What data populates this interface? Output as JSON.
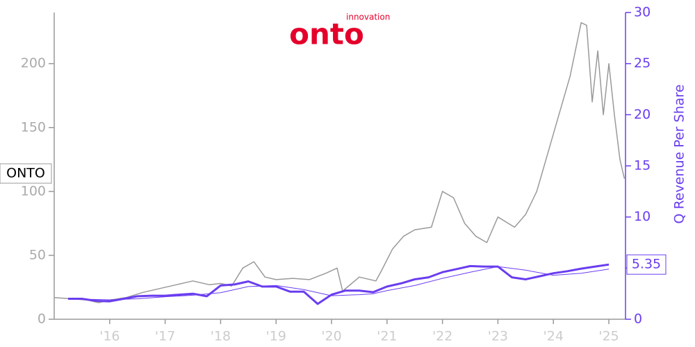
{
  "logo": {
    "name": "onto",
    "tagline": "innovation"
  },
  "chart_data": {
    "type": "line",
    "y2label": "Q Revenue Per Share",
    "xlim": [
      2015.0,
      2025.3
    ],
    "xticks": [
      {
        "value": 2016,
        "label": "'16"
      },
      {
        "value": 2017,
        "label": "'17"
      },
      {
        "value": 2018,
        "label": "'18"
      },
      {
        "value": 2019,
        "label": "'19"
      },
      {
        "value": 2020,
        "label": "'20"
      },
      {
        "value": 2021,
        "label": "'21"
      },
      {
        "value": 2022,
        "label": "'22"
      },
      {
        "value": 2023,
        "label": "'23"
      },
      {
        "value": 2024,
        "label": "'24"
      },
      {
        "value": 2025,
        "label": "'25"
      }
    ],
    "ylim": [
      0,
      240
    ],
    "yticks": [
      0,
      50,
      100,
      150,
      200
    ],
    "y2lim": [
      0,
      30
    ],
    "y2ticks": [
      0,
      5,
      10,
      15,
      20,
      25,
      30
    ],
    "series": [
      {
        "name": "ONTO",
        "color": "#999999",
        "line_width": 1.5,
        "x": [
          2015.0,
          2015.3,
          2015.6,
          2015.8,
          2016.0,
          2016.3,
          2016.6,
          2016.9,
          2017.2,
          2017.5,
          2017.8,
          2018.0,
          2018.2,
          2018.4,
          2018.6,
          2018.8,
          2019.0,
          2019.3,
          2019.6,
          2019.9,
          2020.1,
          2020.2,
          2020.5,
          2020.8,
          2020.9,
          2021.1,
          2021.3,
          2021.5,
          2021.8,
          2022.0,
          2022.2,
          2022.4,
          2022.6,
          2022.8,
          2023.0,
          2023.3,
          2023.5,
          2023.7,
          2023.9,
          2024.1,
          2024.3,
          2024.5,
          2024.6,
          2024.7,
          2024.8,
          2024.9,
          2025.0,
          2025.1,
          2025.2,
          2025.28
        ],
        "values": [
          17,
          16,
          15,
          13,
          15,
          17,
          21,
          24,
          27,
          30,
          27,
          28,
          26,
          40,
          45,
          33,
          31,
          32,
          31,
          36,
          40,
          22,
          33,
          30,
          38,
          55,
          65,
          70,
          72,
          100,
          95,
          75,
          65,
          60,
          80,
          72,
          82,
          100,
          130,
          160,
          190,
          232,
          230,
          170,
          210,
          160,
          200,
          160,
          125,
          110
        ]
      },
      {
        "color": "#6a3df0",
        "axis": "y2",
        "line_width": 3,
        "x": [
          2015.25,
          2015.5,
          2015.75,
          2016.0,
          2016.25,
          2016.5,
          2016.75,
          2017.0,
          2017.25,
          2017.5,
          2017.75,
          2018.0,
          2018.25,
          2018.5,
          2018.75,
          2019.0,
          2019.25,
          2019.5,
          2019.75,
          2020.0,
          2020.25,
          2020.5,
          2020.75,
          2021.0,
          2021.25,
          2021.5,
          2021.75,
          2022.0,
          2022.25,
          2022.5,
          2022.75,
          2023.0,
          2023.25,
          2023.5,
          2023.75,
          2024.0,
          2024.25,
          2024.5,
          2024.75,
          2025.0
        ],
        "values": [
          2.0,
          2.0,
          1.8,
          1.75,
          2.0,
          2.25,
          2.3,
          2.3,
          2.4,
          2.5,
          2.25,
          3.3,
          3.4,
          3.7,
          3.2,
          3.2,
          2.7,
          2.7,
          1.5,
          2.4,
          2.8,
          2.8,
          2.65,
          3.2,
          3.5,
          3.9,
          4.1,
          4.6,
          4.9,
          5.2,
          5.15,
          5.15,
          4.1,
          3.9,
          4.2,
          4.5,
          4.7,
          4.95,
          5.15,
          5.35
        ]
      },
      {
        "color": "#6a3df0",
        "axis": "y2",
        "line_width": 1,
        "x": [
          2015.25,
          2016.0,
          2016.5,
          2017.0,
          2017.5,
          2018.0,
          2018.5,
          2019.0,
          2019.5,
          2020.0,
          2020.5,
          2020.75,
          2021.0,
          2021.5,
          2022.0,
          2022.5,
          2023.0,
          2023.5,
          2024.0,
          2024.5,
          2025.0
        ],
        "values": [
          2.0,
          1.9,
          2.0,
          2.2,
          2.35,
          2.6,
          3.2,
          3.3,
          2.9,
          2.3,
          2.4,
          2.5,
          2.8,
          3.3,
          4.0,
          4.6,
          5.15,
          4.8,
          4.3,
          4.5,
          4.9
        ]
      }
    ]
  }
}
